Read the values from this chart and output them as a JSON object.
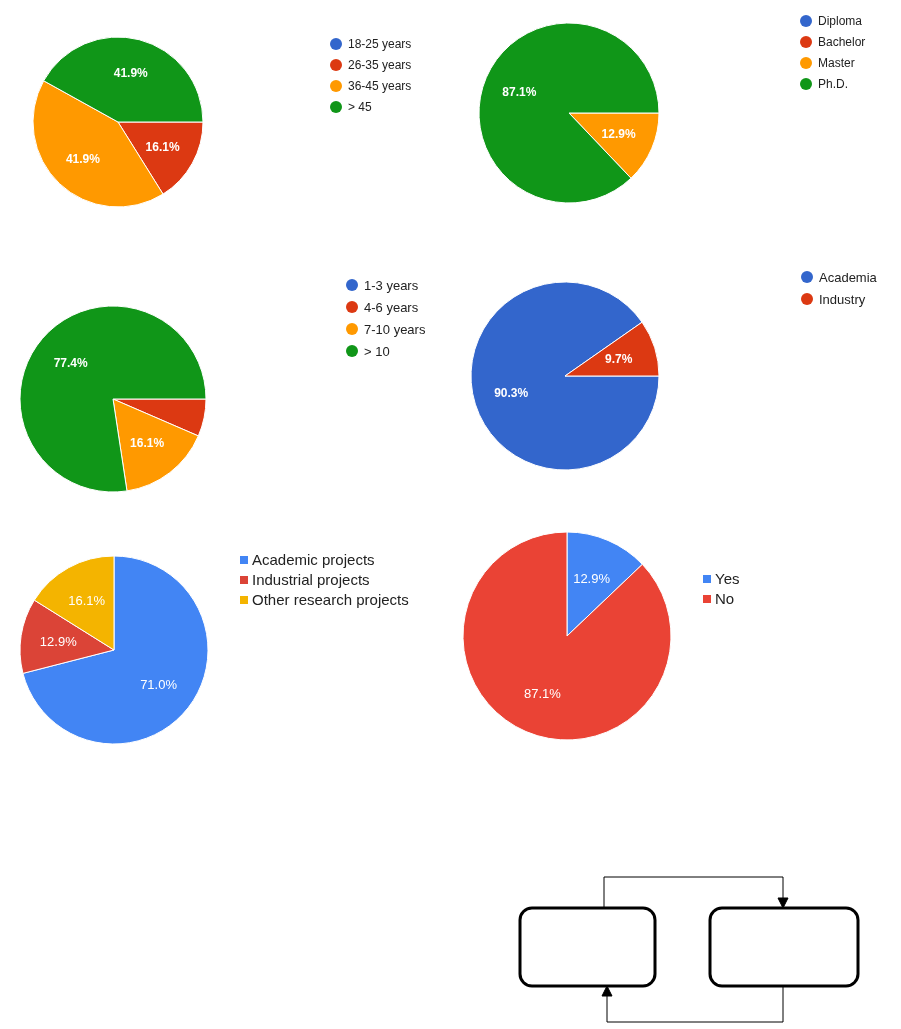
{
  "chart_data": [
    {
      "type": "pie",
      "categories": [
        "18-25 years",
        "26-35 years",
        "36-45 years",
        "> 45"
      ],
      "values": [
        0,
        16.1,
        41.9,
        41.9
      ],
      "colors": [
        "#3366cc",
        "#dc3912",
        "#ff9900",
        "#109618"
      ],
      "value_labels": [
        null,
        "16.1%",
        "41.9%",
        "41.9%"
      ],
      "legend": "right",
      "marker": "circle"
    },
    {
      "type": "pie",
      "categories": [
        "Diploma",
        "Bachelor",
        "Master",
        "Ph.D."
      ],
      "values": [
        0,
        0,
        12.9,
        87.1
      ],
      "colors": [
        "#3366cc",
        "#dc3912",
        "#ff9900",
        "#109618"
      ],
      "value_labels": [
        null,
        null,
        "12.9%",
        "87.1%"
      ],
      "legend": "right",
      "marker": "circle"
    },
    {
      "type": "pie",
      "categories": [
        "1-3 years",
        "4-6 years",
        "7-10 years",
        "> 10"
      ],
      "values": [
        0,
        6.5,
        16.1,
        77.4
      ],
      "colors": [
        "#3366cc",
        "#dc3912",
        "#ff9900",
        "#109618"
      ],
      "value_labels": [
        null,
        null,
        "16.1%",
        "77.4%"
      ],
      "legend": "right",
      "marker": "circle"
    },
    {
      "type": "pie",
      "categories": [
        "Academia",
        "Industry"
      ],
      "values": [
        90.3,
        9.7
      ],
      "colors": [
        "#3366cc",
        "#dc3912"
      ],
      "value_labels": [
        "90.3%",
        "9.7%"
      ],
      "legend": "right",
      "marker": "circle"
    },
    {
      "type": "pie",
      "categories": [
        "Academic projects",
        "Industrial projects",
        "Other research projects"
      ],
      "values": [
        71.0,
        12.9,
        16.1
      ],
      "colors": [
        "#4285f4",
        "#db4437",
        "#f4b400"
      ],
      "value_labels": [
        "71.0%",
        "12.9%",
        "16.1%"
      ],
      "legend": "right",
      "marker": "square"
    },
    {
      "type": "pie",
      "categories": [
        "Yes",
        "No"
      ],
      "values": [
        12.9,
        87.1
      ],
      "colors": [
        "#4285f4",
        "#ea4335"
      ],
      "value_labels": [
        "12.9%",
        "87.1%"
      ],
      "legend": "right",
      "marker": "square"
    }
  ]
}
